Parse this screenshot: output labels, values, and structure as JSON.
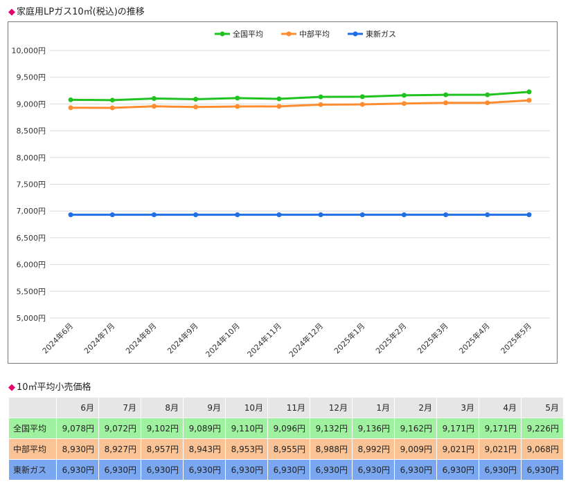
{
  "chart_section": {
    "marker": "◆",
    "title": "家庭用LPガス10㎥(税込)の推移"
  },
  "table_section": {
    "marker": "◆",
    "title": "10㎥平均小売価格"
  },
  "chart_data": {
    "type": "line",
    "categories": [
      "2024年6月",
      "2024年7月",
      "2024年8月",
      "2024年9月",
      "2024年10月",
      "2024年11月",
      "2024年12月",
      "2025年1月",
      "2025年2月",
      "2025年3月",
      "2025年4月",
      "2025年5月"
    ],
    "series": [
      {
        "name": "全国平均",
        "color": "#1fc21f",
        "values": [
          9078,
          9072,
          9102,
          9089,
          9110,
          9096,
          9132,
          9136,
          9162,
          9171,
          9171,
          9226
        ]
      },
      {
        "name": "中部平均",
        "color": "#ff8c2e",
        "values": [
          8930,
          8927,
          8957,
          8943,
          8953,
          8955,
          8988,
          8992,
          9009,
          9021,
          9021,
          9068
        ]
      },
      {
        "name": "東新ガス",
        "color": "#1f6ee6",
        "values": [
          6930,
          6930,
          6930,
          6930,
          6930,
          6930,
          6930,
          6930,
          6930,
          6930,
          6930,
          6930
        ]
      }
    ],
    "ylim": [
      5000,
      10000
    ],
    "yticks": [
      "5,000円",
      "5,500円",
      "6,000円",
      "6,500円",
      "7,000円",
      "7,500円",
      "8,000円",
      "8,500円",
      "9,000円",
      "9,500円",
      "10,000円"
    ],
    "grid": true,
    "legend": "top-center"
  },
  "table": {
    "headers": [
      "6月",
      "7月",
      "8月",
      "9月",
      "10月",
      "11月",
      "12月",
      "1月",
      "2月",
      "3月",
      "4月",
      "5月"
    ],
    "rows": [
      {
        "label": "全国平均",
        "bg": "#9ff09f",
        "cells": [
          "9,078円",
          "9,072円",
          "9,102円",
          "9,089円",
          "9,110円",
          "9,096円",
          "9,132円",
          "9,136円",
          "9,162円",
          "9,171円",
          "9,171円",
          "9,226円"
        ]
      },
      {
        "label": "中部平均",
        "bg": "#fac396",
        "cells": [
          "8,930円",
          "8,927円",
          "8,957円",
          "8,943円",
          "8,953円",
          "8,955円",
          "8,988円",
          "8,992円",
          "9,009円",
          "9,021円",
          "9,021円",
          "9,068円"
        ]
      },
      {
        "label": "東新ガス",
        "bg": "#7aa7ef",
        "cells": [
          "6,930円",
          "6,930円",
          "6,930円",
          "6,930円",
          "6,930円",
          "6,930円",
          "6,930円",
          "6,930円",
          "6,930円",
          "6,930円",
          "6,930円",
          "6,930円"
        ]
      }
    ]
  }
}
